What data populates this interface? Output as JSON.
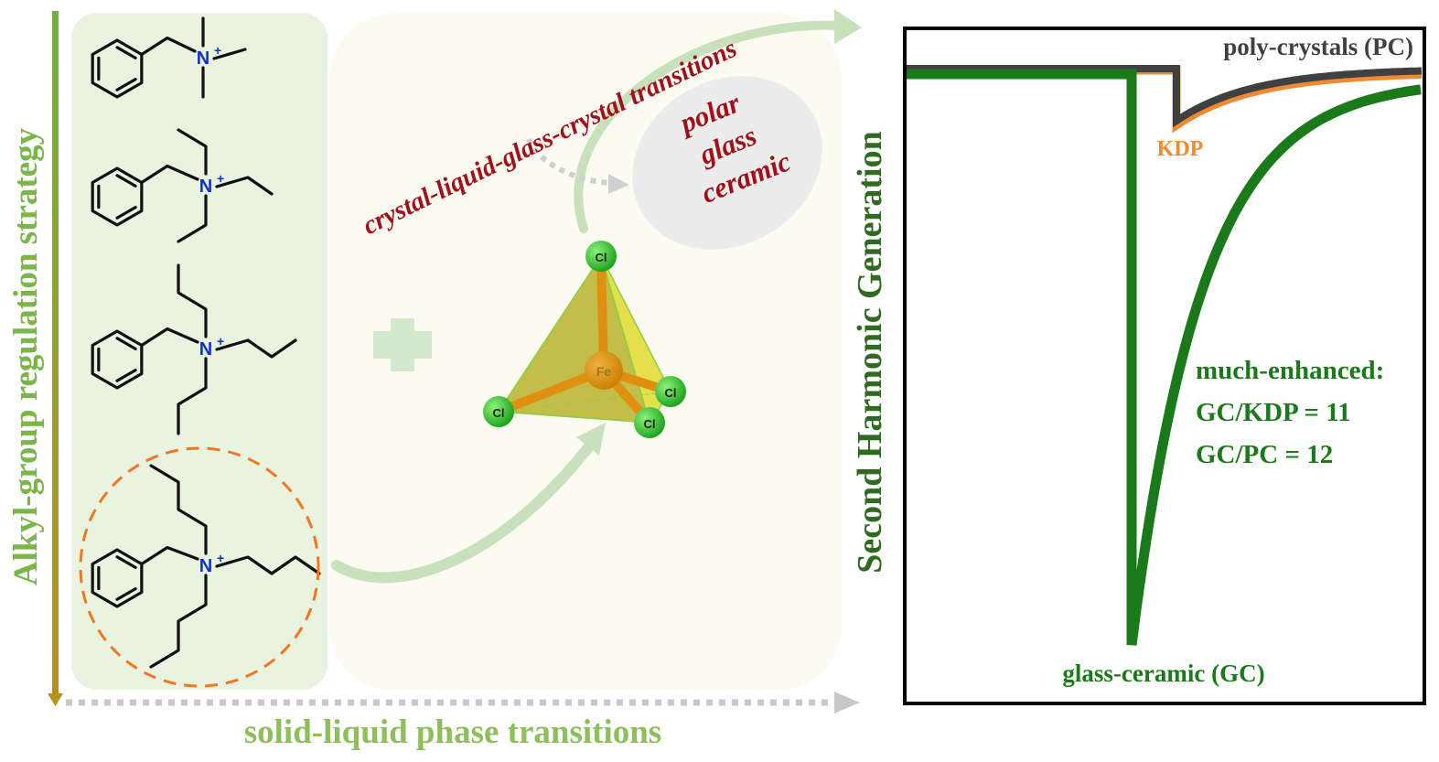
{
  "left_axis": {
    "label": "Alkyl-group regulation strategy",
    "color": "#7ab648"
  },
  "bottom_axis": {
    "label": "solid-liquid phase transitions",
    "color": "#8dbf5a"
  },
  "cations": [
    {
      "substituent": "methyl",
      "charge_label": "N",
      "charge": "+"
    },
    {
      "substituent": "ethyl",
      "charge_label": "N",
      "charge": "+"
    },
    {
      "substituent": "propyl",
      "charge_label": "N",
      "charge": "+"
    },
    {
      "substituent": "butyl",
      "charge_label": "N",
      "charge": "+",
      "highlighted": true
    }
  ],
  "anion": {
    "center": "Fe",
    "ligands": [
      "Cl",
      "Cl",
      "Cl",
      "Cl"
    ]
  },
  "transition_label": "crystal-liquid-glass-crystal transitions",
  "product_bubble": {
    "lines": [
      "polar",
      "glass",
      "ceramic"
    ]
  },
  "shg_panel": {
    "ylabel": "Second Harmonic Generation",
    "curves": [
      {
        "name": "poly-crystals (PC)",
        "color": "#404040"
      },
      {
        "name": "KDP",
        "color": "#f08a30"
      },
      {
        "name": "glass-ceramic (GC)",
        "color": "#1a7a1a"
      }
    ],
    "annotation": [
      "much-enhanced:",
      "GC/KDP = 11",
      "GC/PC = 12"
    ]
  },
  "colors": {
    "accent_red": "#a0101a",
    "green_dark": "#2e6b1f",
    "panel_bg": "#e8f3e0",
    "orange_dash": "#f07820"
  }
}
